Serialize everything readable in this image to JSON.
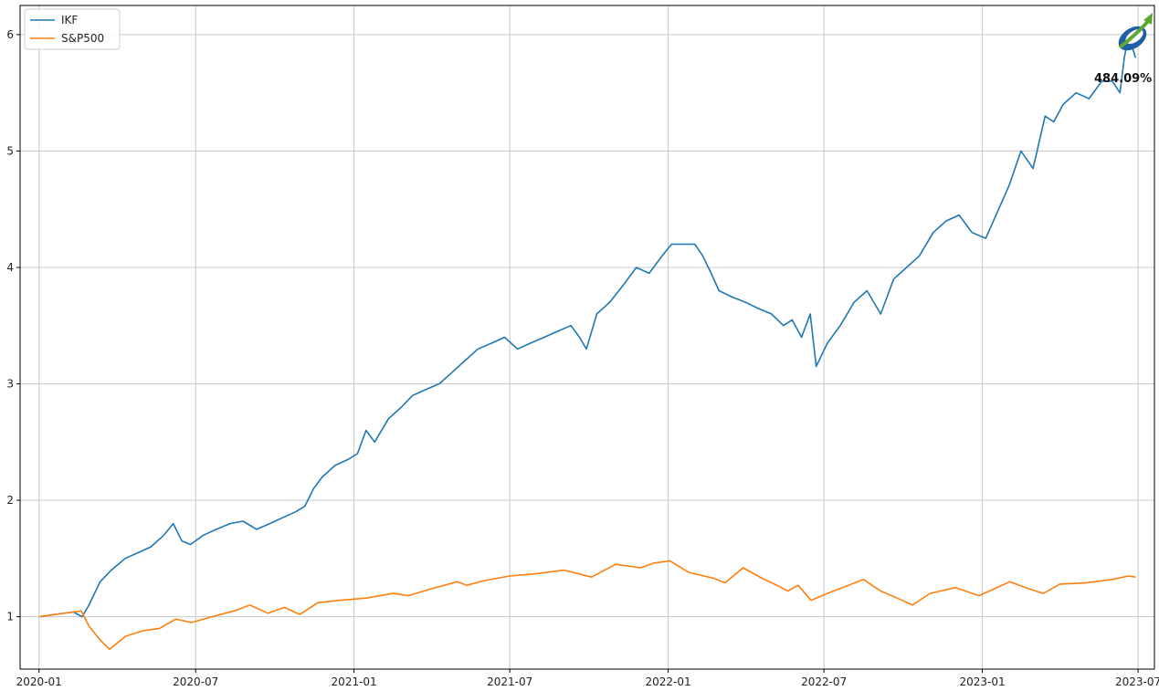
{
  "chart_data": {
    "type": "line",
    "title": "",
    "xlabel": "",
    "ylabel": "",
    "xlim": [
      "2019-12-10",
      "2023-07-20"
    ],
    "ylim": [
      0.55,
      6.25
    ],
    "grid": true,
    "legend_position": "top-left",
    "x_ticks": [
      "2020-01",
      "2020-07",
      "2021-01",
      "2021-07",
      "2022-01",
      "2022-07",
      "2023-01",
      "2023-07"
    ],
    "y_ticks": [
      1,
      2,
      3,
      4,
      5,
      6
    ],
    "annotation": "484.09%",
    "series": [
      {
        "name": "IKF",
        "color": "#1f77b4",
        "x": [
          "2020-01-02",
          "2020-01-20",
          "2020-02-10",
          "2020-02-20",
          "2020-02-28",
          "2020-03-12",
          "2020-03-25",
          "2020-04-10",
          "2020-04-25",
          "2020-05-10",
          "2020-05-25",
          "2020-06-05",
          "2020-06-15",
          "2020-06-25",
          "2020-07-10",
          "2020-07-25",
          "2020-08-10",
          "2020-08-25",
          "2020-09-10",
          "2020-09-25",
          "2020-10-10",
          "2020-10-25",
          "2020-11-05",
          "2020-11-15",
          "2020-11-25",
          "2020-12-10",
          "2020-12-25",
          "2021-01-05",
          "2021-01-15",
          "2021-01-25",
          "2021-02-10",
          "2021-02-25",
          "2021-03-10",
          "2021-03-25",
          "2021-04-10",
          "2021-04-25",
          "2021-05-10",
          "2021-05-25",
          "2021-06-10",
          "2021-06-25",
          "2021-07-10",
          "2021-07-25",
          "2021-08-10",
          "2021-08-25",
          "2021-09-10",
          "2021-09-20",
          "2021-09-28",
          "2021-10-10",
          "2021-10-25",
          "2021-11-10",
          "2021-11-25",
          "2021-12-10",
          "2021-12-25",
          "2022-01-05",
          "2022-01-20",
          "2022-02-01",
          "2022-02-10",
          "2022-02-20",
          "2022-03-01",
          "2022-03-15",
          "2022-04-01",
          "2022-04-15",
          "2022-05-01",
          "2022-05-15",
          "2022-05-25",
          "2022-06-05",
          "2022-06-15",
          "2022-06-22",
          "2022-07-05",
          "2022-07-20",
          "2022-08-05",
          "2022-08-20",
          "2022-09-05",
          "2022-09-20",
          "2022-10-05",
          "2022-10-20",
          "2022-11-05",
          "2022-11-20",
          "2022-12-05",
          "2022-12-20",
          "2023-01-05",
          "2023-01-20",
          "2023-02-01",
          "2023-02-15",
          "2023-03-01",
          "2023-03-15",
          "2023-03-25",
          "2023-04-05",
          "2023-04-20",
          "2023-05-05",
          "2023-05-20",
          "2023-06-01",
          "2023-06-10",
          "2023-06-15",
          "2023-06-20",
          "2023-06-28"
        ],
        "values": [
          1.0,
          1.02,
          1.04,
          1.0,
          1.1,
          1.3,
          1.4,
          1.5,
          1.55,
          1.6,
          1.7,
          1.8,
          1.65,
          1.62,
          1.7,
          1.75,
          1.8,
          1.82,
          1.75,
          1.8,
          1.85,
          1.9,
          1.95,
          2.1,
          2.2,
          2.3,
          2.35,
          2.4,
          2.6,
          2.5,
          2.7,
          2.8,
          2.9,
          2.95,
          3.0,
          3.1,
          3.2,
          3.3,
          3.35,
          3.4,
          3.3,
          3.35,
          3.4,
          3.45,
          3.5,
          3.4,
          3.3,
          3.6,
          3.7,
          3.85,
          4.0,
          3.95,
          4.1,
          4.2,
          4.2,
          4.2,
          4.1,
          3.95,
          3.8,
          3.75,
          3.7,
          3.65,
          3.6,
          3.5,
          3.55,
          3.4,
          3.6,
          3.15,
          3.35,
          3.5,
          3.7,
          3.8,
          3.6,
          3.9,
          4.0,
          4.1,
          4.3,
          4.4,
          4.45,
          4.3,
          4.25,
          4.5,
          4.7,
          5.0,
          4.85,
          5.3,
          5.25,
          5.4,
          5.5,
          5.45,
          5.6,
          5.6,
          5.5,
          5.8,
          6.0,
          5.8
        ]
      },
      {
        "name": "S&P500",
        "color": "#ff7f0e",
        "x": [
          "2020-01-02",
          "2020-01-20",
          "2020-02-10",
          "2020-02-19",
          "2020-02-28",
          "2020-03-12",
          "2020-03-23",
          "2020-04-10",
          "2020-05-01",
          "2020-05-20",
          "2020-06-08",
          "2020-06-26",
          "2020-07-20",
          "2020-08-15",
          "2020-09-02",
          "2020-09-23",
          "2020-10-12",
          "2020-10-30",
          "2020-11-20",
          "2020-12-15",
          "2021-01-15",
          "2021-02-15",
          "2021-03-05",
          "2021-04-01",
          "2021-05-01",
          "2021-05-12",
          "2021-06-01",
          "2021-07-01",
          "2021-08-01",
          "2021-09-02",
          "2021-10-04",
          "2021-11-01",
          "2021-11-30",
          "2021-12-15",
          "2022-01-03",
          "2022-01-25",
          "2022-02-23",
          "2022-03-08",
          "2022-03-29",
          "2022-04-20",
          "2022-05-10",
          "2022-05-20",
          "2022-06-01",
          "2022-06-16",
          "2022-07-05",
          "2022-08-16",
          "2022-09-05",
          "2022-09-30",
          "2022-10-12",
          "2022-11-01",
          "2022-12-01",
          "2022-12-28",
          "2023-01-15",
          "2023-02-02",
          "2023-02-20",
          "2023-03-13",
          "2023-04-01",
          "2023-05-01",
          "2023-06-01",
          "2023-06-20",
          "2023-06-28"
        ],
        "values": [
          1.0,
          1.02,
          1.04,
          1.05,
          0.92,
          0.8,
          0.72,
          0.83,
          0.88,
          0.9,
          0.98,
          0.95,
          1.0,
          1.05,
          1.1,
          1.03,
          1.08,
          1.02,
          1.12,
          1.14,
          1.16,
          1.2,
          1.18,
          1.24,
          1.3,
          1.27,
          1.31,
          1.35,
          1.37,
          1.4,
          1.34,
          1.45,
          1.42,
          1.46,
          1.48,
          1.38,
          1.33,
          1.29,
          1.42,
          1.33,
          1.26,
          1.22,
          1.27,
          1.14,
          1.2,
          1.32,
          1.22,
          1.14,
          1.1,
          1.2,
          1.25,
          1.18,
          1.24,
          1.3,
          1.25,
          1.2,
          1.28,
          1.29,
          1.32,
          1.35,
          1.34
        ]
      }
    ]
  }
}
